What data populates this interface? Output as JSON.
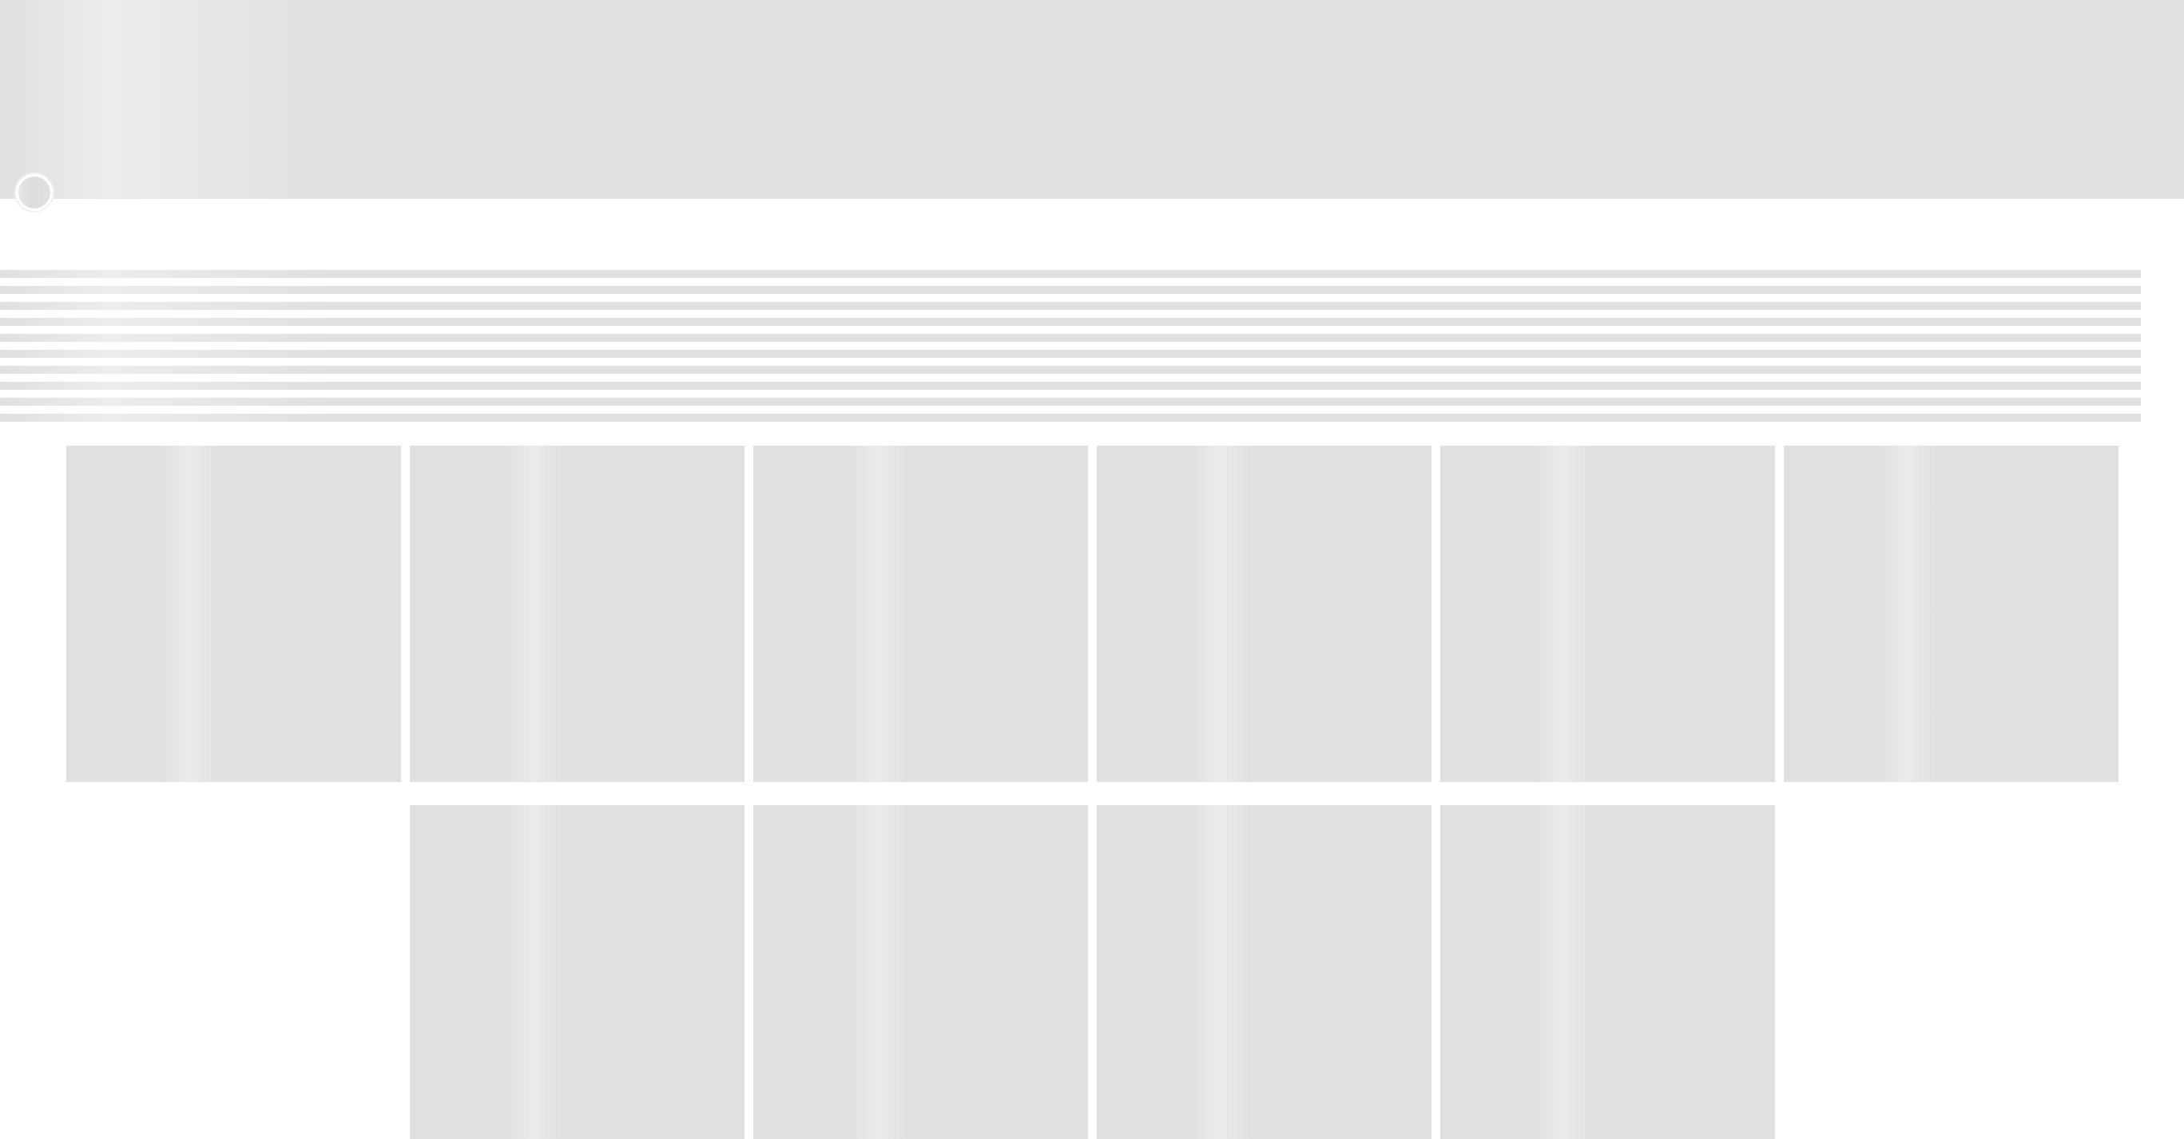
{
  "page": {
    "state": "loading-skeleton",
    "placeholder_color": "#e0e0e0",
    "highlight_color": "#ececec"
  },
  "profile": {
    "cover": {
      "icon": "cover-image-placeholder"
    },
    "avatar": {
      "icon": "avatar-placeholder"
    }
  },
  "bio": {
    "line_count": 10
  },
  "gallery": {
    "rows": [
      {
        "card_count": 6
      },
      {
        "card_count": 4
      }
    ]
  }
}
